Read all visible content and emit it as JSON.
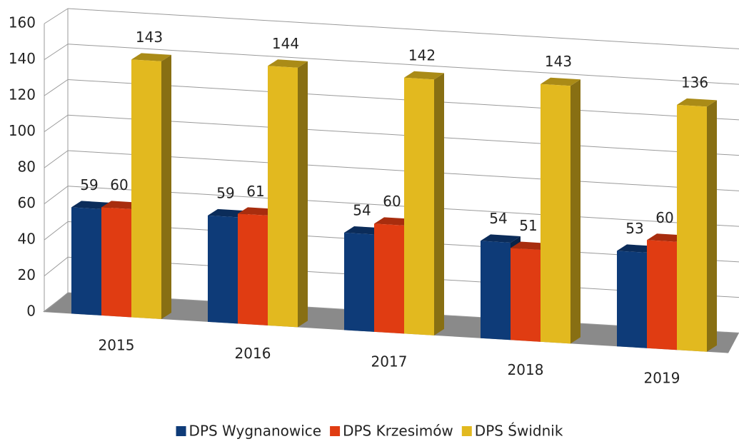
{
  "chart_data": {
    "type": "bar3d",
    "categories": [
      "2015",
      "2016",
      "2017",
      "2018",
      "2019"
    ],
    "series": [
      {
        "name": "DPS Wygnanowice",
        "color": "#0e3b78",
        "values": [
          59,
          59,
          54,
          54,
          53
        ]
      },
      {
        "name": "DPS Krzesimów",
        "color": "#e03c12",
        "values": [
          60,
          61,
          60,
          51,
          60
        ]
      },
      {
        "name": "DPS Świdnik",
        "color": "#e2b91f",
        "values": [
          143,
          144,
          142,
          143,
          136
        ]
      }
    ],
    "ylim": [
      0,
      160
    ],
    "yticks": [
      0,
      20,
      40,
      60,
      80,
      100,
      120,
      140,
      160
    ],
    "grid": true,
    "legend": "bottom"
  }
}
